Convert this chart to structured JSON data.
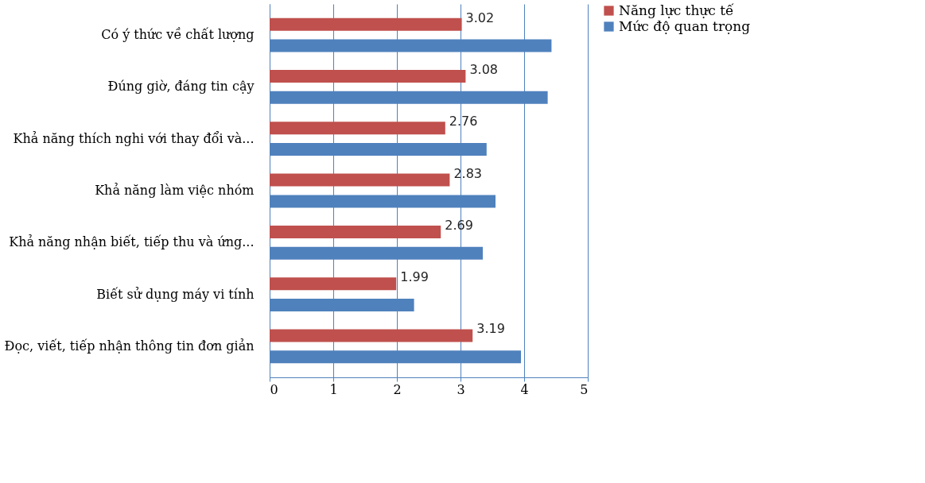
{
  "chart_data": {
    "type": "bar",
    "orientation": "horizontal",
    "categories": [
      "Có ý thức về chất lượng",
      "Đúng giờ, đáng tin cậy",
      "Khả năng thích nghi với thay đổi và...",
      "Khả năng làm việc nhóm",
      "Khả năng nhận biết, tiếp thu và ứng...",
      "Biết sử dụng máy vi tính",
      "Đọc, viết, tiếp nhận thông tin đơn giản"
    ],
    "series": [
      {
        "name": "Năng lực thực tế",
        "color": "#c0504d",
        "values": [
          3.02,
          3.08,
          2.76,
          2.83,
          2.69,
          1.99,
          3.19
        ],
        "value_labels": [
          "3.02",
          "3.08",
          "2.76",
          "2.83",
          "2.69",
          "1.99",
          "3.19"
        ]
      },
      {
        "name": "Mức độ quan trọng",
        "color": "#4f81bd",
        "values": [
          4.43,
          4.37,
          3.41,
          3.55,
          3.35,
          2.27,
          3.95
        ]
      }
    ],
    "xlim": [
      0,
      5
    ],
    "xticks": [
      0,
      1,
      2,
      3,
      4,
      5
    ],
    "grid": "x",
    "legend": "right"
  }
}
